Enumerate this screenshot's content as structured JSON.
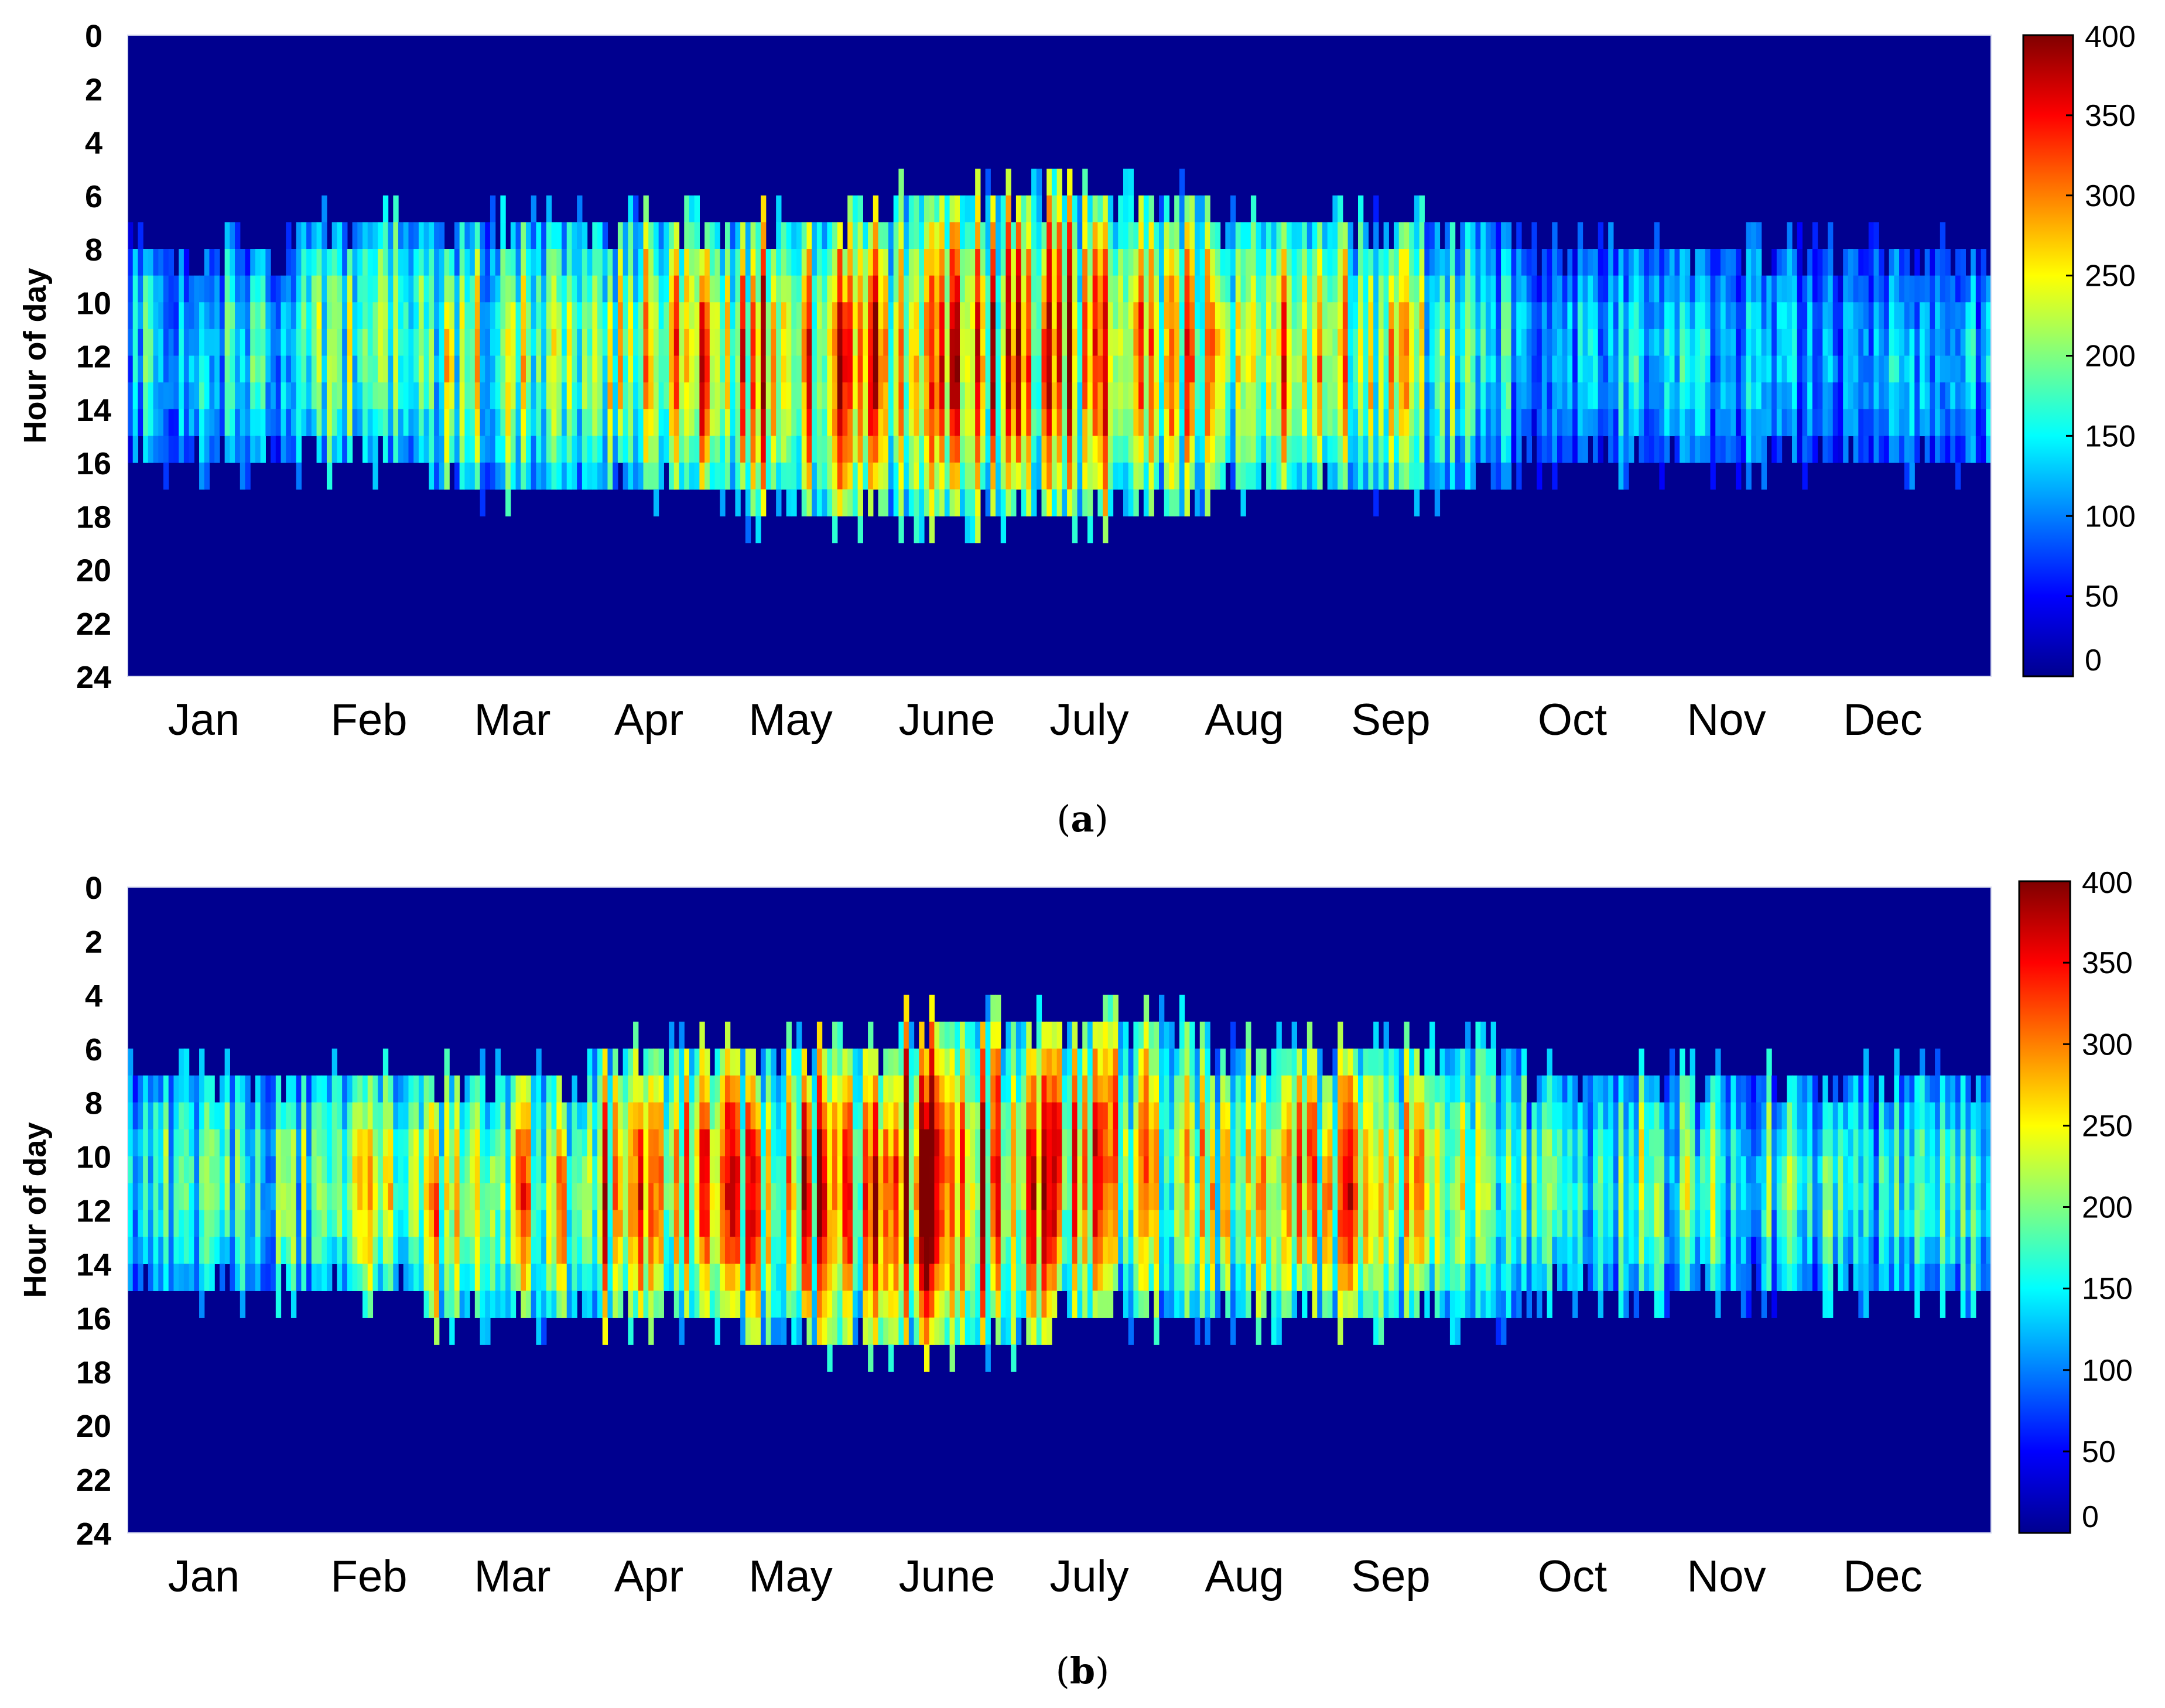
{
  "chart_data": [
    {
      "type": "heatmap",
      "panel": "a",
      "title": "",
      "xlabel": "",
      "ylabel": "Hour of day",
      "x_tick_labels": [
        "Jan",
        "Feb",
        "Mar",
        "Apr",
        "May",
        "June",
        "July",
        "Aug",
        "Sep",
        "Oct",
        "Nov",
        "Dec"
      ],
      "y_tick_labels": [
        "0",
        "2",
        "4",
        "6",
        "8",
        "10",
        "12",
        "14",
        "16",
        "18",
        "20",
        "22",
        "24"
      ],
      "y_range": [
        0,
        24
      ],
      "colorbar": {
        "range": [
          0,
          400
        ],
        "ticks": [
          "0",
          "50",
          "100",
          "150",
          "200",
          "250",
          "300",
          "350",
          "400"
        ]
      },
      "colormap": "jet",
      "background_color": "#00008f",
      "monthly_daylight_window": [
        {
          "month": "Jan",
          "start_hour": 8,
          "end_hour": 16,
          "typical_value": 150
        },
        {
          "month": "Feb",
          "start_hour": 7,
          "end_hour": 16,
          "typical_value": 160
        },
        {
          "month": "Mar",
          "start_hour": 7,
          "end_hour": 17,
          "typical_value": 220
        },
        {
          "month": "Apr",
          "start_hour": 7,
          "end_hour": 17,
          "typical_value": 210
        },
        {
          "month": "May",
          "start_hour": 7,
          "end_hour": 18,
          "typical_value": 300
        },
        {
          "month": "June",
          "start_hour": 6,
          "end_hour": 18,
          "typical_value": 290
        },
        {
          "month": "July",
          "start_hour": 6,
          "end_hour": 18,
          "typical_value": 300
        },
        {
          "month": "Aug",
          "start_hour": 7,
          "end_hour": 17,
          "typical_value": 270
        },
        {
          "month": "Sep",
          "start_hour": 7,
          "end_hour": 17,
          "typical_value": 250
        },
        {
          "month": "Oct",
          "start_hour": 8,
          "end_hour": 16,
          "typical_value": 140
        },
        {
          "month": "Nov",
          "start_hour": 8,
          "end_hour": 16,
          "typical_value": 130
        },
        {
          "month": "Dec",
          "start_hour": 8,
          "end_hour": 16,
          "typical_value": 120
        }
      ]
    },
    {
      "type": "heatmap",
      "panel": "b",
      "title": "",
      "xlabel": "",
      "ylabel": "Hour of day",
      "x_tick_labels": [
        "Jan",
        "Feb",
        "Mar",
        "Apr",
        "May",
        "June",
        "July",
        "Aug",
        "Sep",
        "Oct",
        "Nov",
        "Dec"
      ],
      "y_tick_labels": [
        "0",
        "2",
        "4",
        "6",
        "8",
        "10",
        "12",
        "14",
        "16",
        "18",
        "20",
        "22",
        "24"
      ],
      "y_range": [
        0,
        24
      ],
      "colorbar": {
        "range": [
          0,
          400
        ],
        "ticks": [
          "0",
          "50",
          "100",
          "150",
          "200",
          "250",
          "300",
          "350",
          "400"
        ]
      },
      "colormap": "jet",
      "background_color": "#00008f",
      "monthly_daylight_window": [
        {
          "month": "Jan",
          "start_hour": 7,
          "end_hour": 15,
          "typical_value": 160
        },
        {
          "month": "Feb",
          "start_hour": 7,
          "end_hour": 15,
          "typical_value": 180
        },
        {
          "month": "Mar",
          "start_hour": 7,
          "end_hour": 16,
          "typical_value": 260
        },
        {
          "month": "Apr",
          "start_hour": 6,
          "end_hour": 16,
          "typical_value": 280
        },
        {
          "month": "May",
          "start_hour": 6,
          "end_hour": 17,
          "typical_value": 280
        },
        {
          "month": "June",
          "start_hour": 5,
          "end_hour": 17,
          "typical_value": 320
        },
        {
          "month": "July",
          "start_hour": 5,
          "end_hour": 16,
          "typical_value": 290
        },
        {
          "month": "Aug",
          "start_hour": 6,
          "end_hour": 16,
          "typical_value": 240
        },
        {
          "month": "Sep",
          "start_hour": 6,
          "end_hour": 16,
          "typical_value": 280
        },
        {
          "month": "Oct",
          "start_hour": 7,
          "end_hour": 15,
          "typical_value": 180
        },
        {
          "month": "Nov",
          "start_hour": 7,
          "end_hour": 15,
          "typical_value": 190
        },
        {
          "month": "Dec",
          "start_hour": 7,
          "end_hour": 15,
          "typical_value": 160
        }
      ]
    }
  ],
  "labels": [
    {
      "open": "(",
      "letter": "a",
      "close": ")"
    },
    {
      "open": "(",
      "letter": "b",
      "close": ")"
    }
  ]
}
